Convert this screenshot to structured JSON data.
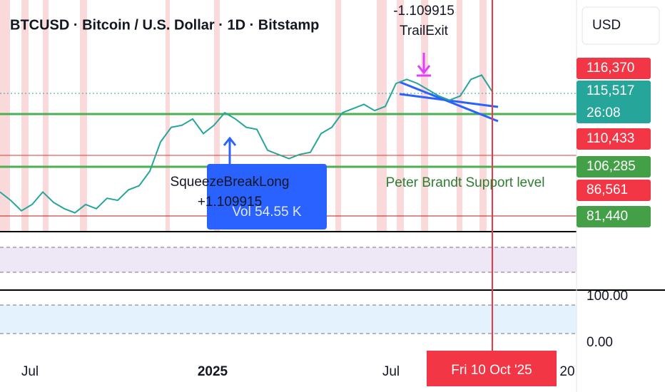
{
  "chart_data": {
    "type": "line",
    "title": "BTCUSD · Bitcoin / U.S. Dollar · 1D · Bitstamp",
    "currency": "USD",
    "categories": [
      null,
      null,
      null,
      null,
      null,
      null,
      null,
      null,
      null,
      null,
      null,
      null,
      null,
      null,
      null,
      null,
      null,
      null,
      null,
      null,
      null,
      null,
      null,
      null,
      null,
      null,
      null,
      null,
      null,
      null,
      null,
      null,
      null,
      null,
      null,
      null,
      null,
      null,
      null,
      null,
      null,
      null,
      null,
      null,
      null,
      null,
      null
    ],
    "series": [
      {
        "name": "BTCUSD",
        "color": "#26a69a",
        "values": [
          66000,
          62000,
          57000,
          60000,
          66000,
          61000,
          58000,
          56000,
          60000,
          58000,
          63000,
          62000,
          67000,
          69000,
          76000,
          90000,
          97000,
          98000,
          101000,
          94000,
          98000,
          104000,
          101000,
          97000,
          96000,
          86000,
          84000,
          82000,
          84000,
          85000,
          94000,
          97000,
          104000,
          106000,
          108000,
          105000,
          107000,
          118000,
          120000,
          118000,
          115000,
          112000,
          110000,
          112000,
          120000,
          122000,
          114000
        ]
      }
    ],
    "ylim": [
      47000,
      158000
    ],
    "price_tags": [
      {
        "value": 116370,
        "label": "116,370",
        "color": "#f23645"
      },
      {
        "value": 115517,
        "label": "115,517",
        "color": "#26a69a"
      },
      {
        "value": 110433,
        "label": "110,433",
        "color": "#f23645"
      },
      {
        "value": 106285,
        "label": "106,285",
        "color": "#43a047"
      },
      {
        "value": 86561,
        "label": "86,561",
        "color": "#f23645"
      },
      {
        "value": 81440,
        "label": "81,440",
        "color": "#43a047"
      }
    ],
    "countdown": "26:08",
    "oscillator_ticks": [
      "100.00",
      "0.00"
    ],
    "xtick_labels": [
      "Jul",
      "2025",
      "Jul",
      "20"
    ],
    "crosshair_date": "Fri 10 Oct '25",
    "annotations": {
      "trail_value": "-1.109915",
      "trail_name": "TrailExit",
      "squeeze_name": "SqueezeBreakLong",
      "squeeze_value": "+1.109915",
      "volume": "Vol 54.55 K",
      "support": "Peter Brandt Support level"
    }
  }
}
